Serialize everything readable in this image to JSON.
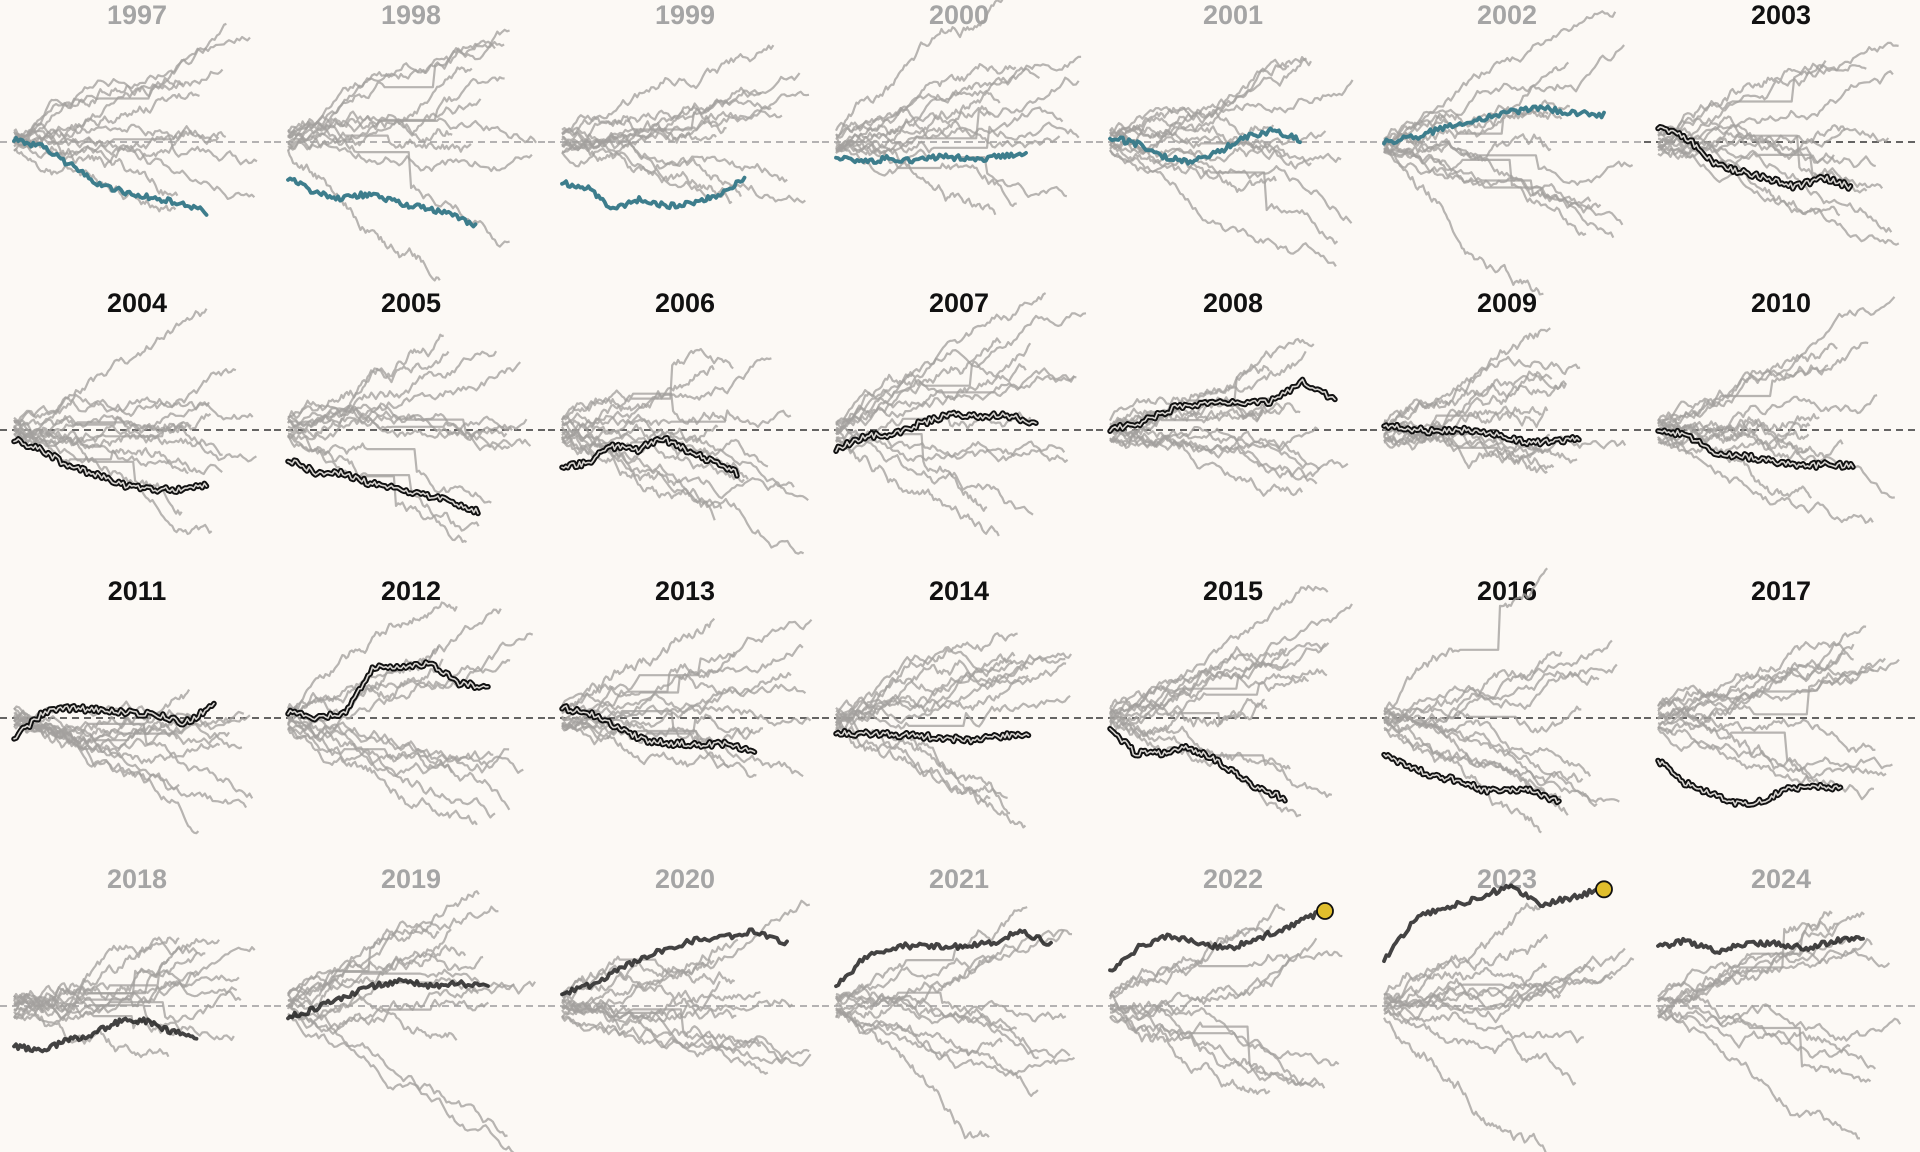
{
  "colors": {
    "background": "#fcf9f5",
    "grey_line": "#a3a09d",
    "dark_line": "#222222",
    "muted_title": "#a5a5a5",
    "bold_title": "#111111",
    "teal": "#3d7d8c",
    "end_marker": "#e0be2c"
  },
  "chart_data": [
    {
      "type": "line",
      "year": "1997",
      "style": "muted",
      "highlight": "teal",
      "highlight_end": 0.77,
      "highlight_path": [
        0.03,
        -0.05,
        -0.22,
        -0.41,
        -0.5,
        -0.56,
        -0.61,
        -0.7
      ],
      "n_lines": 12
    },
    {
      "type": "line",
      "year": "1998",
      "style": "muted",
      "highlight": "teal",
      "highlight_end": 0.75,
      "highlight_path": [
        -0.36,
        -0.5,
        -0.56,
        -0.52,
        -0.6,
        -0.66,
        -0.72,
        -0.84
      ],
      "n_lines": 12
    },
    {
      "type": "line",
      "year": "1999",
      "style": "muted",
      "highlight": "teal",
      "highlight_end": 0.73,
      "highlight_path": [
        -0.4,
        -0.47,
        -0.68,
        -0.57,
        -0.64,
        -0.62,
        -0.52,
        -0.36
      ],
      "n_lines": 12
    },
    {
      "type": "line",
      "year": "2000",
      "style": "muted",
      "highlight": "teal",
      "highlight_end": 0.76,
      "highlight_path": [
        -0.14,
        -0.2,
        -0.16,
        -0.19,
        -0.14,
        -0.18,
        -0.15,
        -0.1
      ],
      "n_lines": 13
    },
    {
      "type": "line",
      "year": "2001",
      "style": "muted",
      "highlight": "teal",
      "highlight_end": 0.76,
      "highlight_path": [
        0.05,
        -0.02,
        -0.15,
        -0.2,
        -0.1,
        0.05,
        0.12,
        0.02
      ],
      "n_lines": 13
    },
    {
      "type": "line",
      "year": "2002",
      "style": "muted",
      "highlight": "teal",
      "highlight_end": 0.88,
      "highlight_path": [
        0.0,
        0.05,
        0.15,
        0.22,
        0.3,
        0.34,
        0.29,
        0.27
      ],
      "n_lines": 14
    },
    {
      "type": "line",
      "year": "2003",
      "style": "bold",
      "highlight": "dark_outline",
      "highlight_end": 0.77,
      "highlight_path": [
        0.15,
        0.05,
        -0.2,
        -0.3,
        -0.36,
        -0.45,
        -0.35,
        -0.45
      ],
      "n_lines": 13
    },
    {
      "type": "line",
      "year": "2004",
      "style": "bold",
      "highlight": "dark_outline",
      "highlight_end": 0.77,
      "highlight_path": [
        -0.1,
        -0.2,
        -0.36,
        -0.45,
        -0.55,
        -0.6,
        -0.6,
        -0.56
      ],
      "n_lines": 13
    },
    {
      "type": "line",
      "year": "2005",
      "style": "bold",
      "highlight": "dark_outline",
      "highlight_end": 0.76,
      "highlight_path": [
        -0.3,
        -0.42,
        -0.43,
        -0.53,
        -0.58,
        -0.66,
        -0.71,
        -0.82
      ],
      "n_lines": 12
    },
    {
      "type": "line",
      "year": "2006",
      "style": "bold",
      "highlight": "dark_outline",
      "highlight_end": 0.7,
      "highlight_path": [
        -0.36,
        -0.33,
        -0.16,
        -0.2,
        -0.08,
        -0.2,
        -0.32,
        -0.43
      ],
      "n_lines": 14
    },
    {
      "type": "line",
      "year": "2007",
      "style": "bold",
      "highlight": "dark_outline",
      "highlight_end": 0.8,
      "highlight_path": [
        -0.2,
        -0.06,
        -0.04,
        0.07,
        0.15,
        0.14,
        0.15,
        0.05
      ],
      "n_lines": 13
    },
    {
      "type": "line",
      "year": "2008",
      "style": "bold",
      "highlight": "dark_outline",
      "highlight_end": 0.9,
      "highlight_path": [
        0.0,
        0.08,
        0.22,
        0.28,
        0.28,
        0.28,
        0.48,
        0.3
      ],
      "n_lines": 13
    },
    {
      "type": "line",
      "year": "2009",
      "style": "bold",
      "highlight": "dark_outline",
      "highlight_end": 0.78,
      "highlight_path": [
        0.05,
        0.01,
        -0.02,
        0.0,
        -0.04,
        -0.12,
        -0.12,
        -0.09
      ],
      "n_lines": 13
    },
    {
      "type": "line",
      "year": "2010",
      "style": "bold",
      "highlight": "dark_outline",
      "highlight_end": 0.78,
      "highlight_path": [
        0.0,
        -0.05,
        -0.22,
        -0.26,
        -0.3,
        -0.36,
        -0.35,
        -0.35
      ],
      "n_lines": 13
    },
    {
      "type": "line",
      "year": "2011",
      "style": "bold",
      "highlight": "dark_outline",
      "highlight_end": 0.8,
      "highlight_path": [
        -0.2,
        0.05,
        0.1,
        0.08,
        0.05,
        0.03,
        -0.05,
        0.12
      ],
      "n_lines": 13
    },
    {
      "type": "line",
      "year": "2012",
      "style": "bold",
      "highlight": "dark_outline",
      "highlight_end": 0.8,
      "highlight_path": [
        0.05,
        0.0,
        0.05,
        0.5,
        0.52,
        0.55,
        0.35,
        0.3
      ],
      "n_lines": 13
    },
    {
      "type": "line",
      "year": "2013",
      "style": "bold",
      "highlight": "dark_outline",
      "highlight_end": 0.77,
      "highlight_path": [
        0.1,
        0.05,
        -0.1,
        -0.22,
        -0.26,
        -0.26,
        -0.26,
        -0.34
      ],
      "n_lines": 13
    },
    {
      "type": "line",
      "year": "2014",
      "style": "bold",
      "highlight": "dark_outline",
      "highlight_end": 0.77,
      "highlight_path": [
        -0.15,
        -0.16,
        -0.16,
        -0.18,
        -0.2,
        -0.22,
        -0.18,
        -0.16
      ],
      "n_lines": 13
    },
    {
      "type": "line",
      "year": "2015",
      "style": "bold",
      "highlight": "dark_outline",
      "highlight_end": 0.7,
      "highlight_path": [
        -0.1,
        -0.35,
        -0.35,
        -0.3,
        -0.38,
        -0.55,
        -0.72,
        -0.8
      ],
      "n_lines": 13
    },
    {
      "type": "line",
      "year": "2016",
      "style": "bold",
      "highlight": "dark_outline",
      "highlight_end": 0.7,
      "highlight_path": [
        -0.36,
        -0.48,
        -0.58,
        -0.62,
        -0.72,
        -0.72,
        -0.72,
        -0.85
      ],
      "n_lines": 13
    },
    {
      "type": "line",
      "year": "2017",
      "style": "bold",
      "highlight": "dark_outline",
      "highlight_end": 0.73,
      "highlight_path": [
        -0.42,
        -0.65,
        -0.75,
        -0.86,
        -0.84,
        -0.7,
        -0.68,
        -0.7
      ],
      "n_lines": 13
    },
    {
      "type": "line",
      "year": "2018",
      "style": "muted",
      "highlight": "dark",
      "highlight_end": 0.73,
      "highlight_path": [
        -0.4,
        -0.45,
        -0.35,
        -0.28,
        -0.16,
        -0.14,
        -0.25,
        -0.32
      ],
      "n_lines": 13
    },
    {
      "type": "line",
      "year": "2019",
      "style": "muted",
      "highlight": "dark",
      "highlight_end": 0.8,
      "highlight_path": [
        -0.12,
        -0.02,
        0.1,
        0.2,
        0.25,
        0.2,
        0.22,
        0.22
      ],
      "n_lines": 13
    },
    {
      "type": "line",
      "year": "2020",
      "style": "muted",
      "highlight": "dark",
      "highlight_end": 0.9,
      "highlight_path": [
        0.12,
        0.22,
        0.4,
        0.55,
        0.65,
        0.68,
        0.75,
        0.62
      ],
      "n_lines": 13
    },
    {
      "type": "line",
      "year": "2021",
      "style": "muted",
      "highlight": "dark",
      "highlight_end": 0.86,
      "highlight_path": [
        0.2,
        0.5,
        0.6,
        0.6,
        0.6,
        0.62,
        0.75,
        0.62
      ],
      "n_lines": 12
    },
    {
      "type": "line",
      "year": "2022",
      "style": "muted",
      "highlight": "dark",
      "highlight_end": 0.86,
      "highlight_path": [
        0.36,
        0.6,
        0.7,
        0.62,
        0.58,
        0.7,
        0.82,
        0.95
      ],
      "n_lines": 11,
      "end_marker": true
    },
    {
      "type": "line",
      "year": "2023",
      "style": "muted",
      "highlight": "dark",
      "highlight_end": 0.88,
      "highlight_path": [
        0.45,
        0.88,
        0.98,
        1.08,
        1.2,
        1.02,
        1.08,
        1.18
      ],
      "n_lines": 12,
      "end_marker": true
    },
    {
      "type": "line",
      "year": "2024",
      "style": "muted",
      "highlight": "dark",
      "highlight_end": 0.82,
      "highlight_path": [
        0.6,
        0.65,
        0.55,
        0.62,
        0.62,
        0.58,
        0.65,
        0.7
      ],
      "n_lines": 11
    }
  ]
}
